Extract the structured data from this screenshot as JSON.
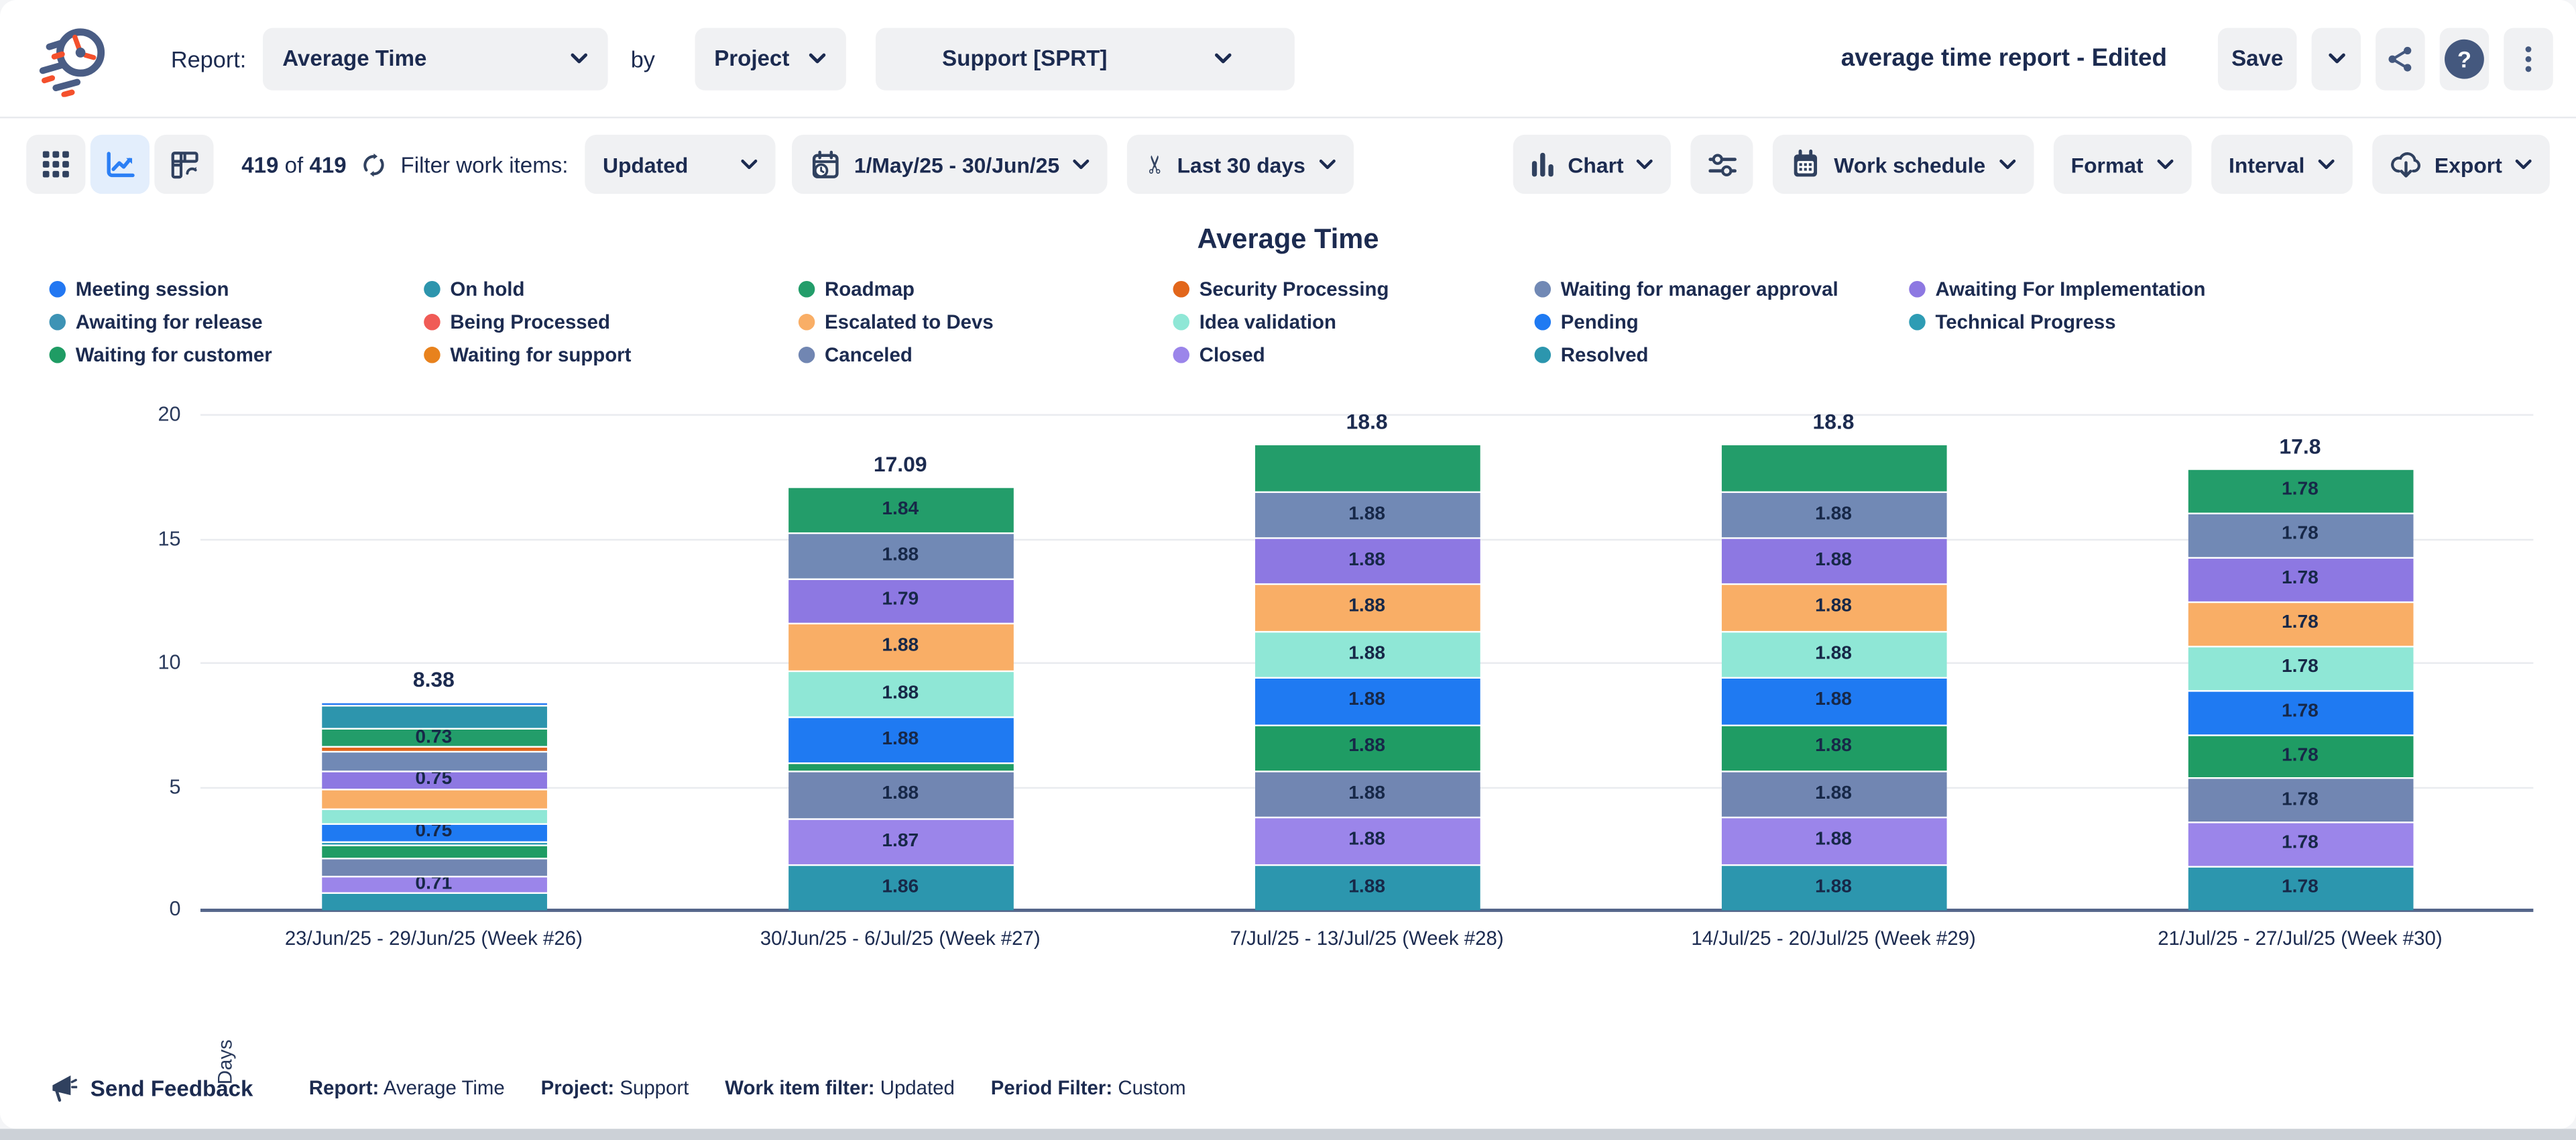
{
  "page": {
    "background": "#f4f5f7",
    "card_background": "#ffffff",
    "text_color": "#1c2b50",
    "accent_blue": "#2b7ff5",
    "button_background": "#f0f1f3",
    "selected_toggle_background": "#e3eefc"
  },
  "header": {
    "report_label": "Report:",
    "report_value": "Average Time",
    "by_label": "by",
    "group_by_value": "Project",
    "project_value": "Support [SPRT]",
    "document_title": "average time report - Edited",
    "save_label": "Save"
  },
  "toolbar": {
    "items_count": "419",
    "items_of": "of",
    "items_total": "419",
    "filter_label": "Filter work items:",
    "filter_value": "Updated",
    "date_range_value": "1/May/25 - 30/Jun/25",
    "trim_period_value": "Last 30 days",
    "chart_button_label": "Chart",
    "work_schedule_label": "Work schedule",
    "format_label": "Format",
    "interval_label": "Interval",
    "export_label": "Export"
  },
  "legend_columns": [
    [
      "Meeting session",
      "Awaiting for release",
      "Waiting for customer"
    ],
    [
      "On hold",
      "Being Processed",
      "Waiting for support"
    ],
    [
      "Roadmap",
      "Escalated to Devs",
      "Canceled"
    ],
    [
      "Security Processing",
      "Idea validation",
      "Closed"
    ],
    [
      "Waiting for manager approval",
      "Pending",
      "Resolved"
    ],
    [
      "Awaiting For Implementation",
      "Technical Progress"
    ]
  ],
  "status_colors": {
    "Meeting session": "#2277f2",
    "On hold": "#2d95ad",
    "Roadmap": "#239d6a",
    "Security Processing": "#e2661b",
    "Waiting for manager approval": "#7189b5",
    "Awaiting For Implementation": "#8d78e2",
    "Awaiting for release": "#3d93b5",
    "Being Processed": "#f05b56",
    "Escalated to Devs": "#f9ae66",
    "Idea validation": "#8fe7d6",
    "Pending": "#1f7af2",
    "Technical Progress": "#2e9cb4",
    "Waiting for customer": "#1f9c64",
    "Waiting for support": "#e8821d",
    "Canceled": "#7186b2",
    "Closed": "#9b85ea",
    "Resolved": "#2c96ae"
  },
  "chart_data": {
    "type": "stacked-bar",
    "title": "Average Time",
    "xlabel": "",
    "ylabel": "Days",
    "ylim": [
      0,
      20
    ],
    "yticks": [
      0,
      5,
      10,
      15,
      20
    ],
    "grid": true,
    "legend_position": "top",
    "categories": [
      "23/Jun/25 - 29/Jun/25 (Week #26)",
      "30/Jun/25 - 6/Jul/25 (Week #27)",
      "7/Jul/25 - 13/Jul/25 (Week #28)",
      "14/Jul/25 - 20/Jul/25 (Week #29)",
      "21/Jul/25 - 27/Jul/25 (Week #30)"
    ],
    "totals": [
      "8.38",
      "17.09",
      "18.8",
      "18.8",
      "17.8"
    ],
    "bars": [
      {
        "total": "8.38",
        "segments": [
          {
            "status": "Meeting session",
            "value": 0.15,
            "label": ""
          },
          {
            "status": "On hold",
            "value": 0.95,
            "label": ""
          },
          {
            "status": "Roadmap",
            "value": 0.73,
            "label": "0.73"
          },
          {
            "status": "Security Processing",
            "value": 0.18,
            "label": ""
          },
          {
            "status": "Waiting for manager approval",
            "value": 0.77,
            "label": ""
          },
          {
            "status": "Awaiting For Implementation",
            "value": 0.75,
            "label": "0.75"
          },
          {
            "status": "Escalated to Devs",
            "value": 0.77,
            "label": ""
          },
          {
            "status": "Idea validation",
            "value": 0.6,
            "label": ""
          },
          {
            "status": "Pending",
            "value": 0.75,
            "label": "0.75"
          },
          {
            "status": "Technical Progress",
            "value": 0.1,
            "label": ""
          },
          {
            "status": "Waiting for customer",
            "value": 0.54,
            "label": ""
          },
          {
            "status": "Canceled",
            "value": 0.68,
            "label": ""
          },
          {
            "status": "Closed",
            "value": 0.71,
            "label": "0.71"
          },
          {
            "status": "Resolved",
            "value": 0.7,
            "label": ""
          }
        ]
      },
      {
        "total": "17.09",
        "segments": [
          {
            "status": "Roadmap",
            "value": 1.84,
            "label": "1.84"
          },
          {
            "status": "Waiting for manager approval",
            "value": 1.88,
            "label": "1.88"
          },
          {
            "status": "Awaiting For Implementation",
            "value": 1.79,
            "label": "1.79"
          },
          {
            "status": "Escalated to Devs",
            "value": 1.88,
            "label": "1.88"
          },
          {
            "status": "Idea validation",
            "value": 1.88,
            "label": "1.88"
          },
          {
            "status": "Pending",
            "value": 1.88,
            "label": "1.88"
          },
          {
            "status": "Waiting for customer",
            "value": 0.33,
            "label": ""
          },
          {
            "status": "Canceled",
            "value": 1.88,
            "label": "1.88"
          },
          {
            "status": "Closed",
            "value": 1.87,
            "label": "1.87"
          },
          {
            "status": "Resolved",
            "value": 1.86,
            "label": "1.86"
          }
        ]
      },
      {
        "total": "18.8",
        "segments": [
          {
            "status": "Roadmap",
            "value": 1.88,
            "label": ""
          },
          {
            "status": "Waiting for manager approval",
            "value": 1.88,
            "label": "1.88"
          },
          {
            "status": "Awaiting For Implementation",
            "value": 1.88,
            "label": "1.88"
          },
          {
            "status": "Escalated to Devs",
            "value": 1.88,
            "label": "1.88"
          },
          {
            "status": "Idea validation",
            "value": 1.88,
            "label": "1.88"
          },
          {
            "status": "Pending",
            "value": 1.88,
            "label": "1.88"
          },
          {
            "status": "Waiting for customer",
            "value": 1.88,
            "label": "1.88"
          },
          {
            "status": "Canceled",
            "value": 1.88,
            "label": "1.88"
          },
          {
            "status": "Closed",
            "value": 1.88,
            "label": "1.88"
          },
          {
            "status": "Resolved",
            "value": 1.88,
            "label": "1.88"
          }
        ]
      },
      {
        "total": "18.8",
        "segments": [
          {
            "status": "Roadmap",
            "value": 1.88,
            "label": ""
          },
          {
            "status": "Waiting for manager approval",
            "value": 1.88,
            "label": "1.88"
          },
          {
            "status": "Awaiting For Implementation",
            "value": 1.88,
            "label": "1.88"
          },
          {
            "status": "Escalated to Devs",
            "value": 1.88,
            "label": "1.88"
          },
          {
            "status": "Idea validation",
            "value": 1.88,
            "label": "1.88"
          },
          {
            "status": "Pending",
            "value": 1.88,
            "label": "1.88"
          },
          {
            "status": "Waiting for customer",
            "value": 1.88,
            "label": "1.88"
          },
          {
            "status": "Canceled",
            "value": 1.88,
            "label": "1.88"
          },
          {
            "status": "Closed",
            "value": 1.88,
            "label": "1.88"
          },
          {
            "status": "Resolved",
            "value": 1.88,
            "label": "1.88"
          }
        ]
      },
      {
        "total": "17.8",
        "segments": [
          {
            "status": "Roadmap",
            "value": 1.78,
            "label": "1.78"
          },
          {
            "status": "Waiting for manager approval",
            "value": 1.78,
            "label": "1.78"
          },
          {
            "status": "Awaiting For Implementation",
            "value": 1.78,
            "label": "1.78"
          },
          {
            "status": "Escalated to Devs",
            "value": 1.78,
            "label": "1.78"
          },
          {
            "status": "Idea validation",
            "value": 1.78,
            "label": "1.78"
          },
          {
            "status": "Pending",
            "value": 1.78,
            "label": "1.78"
          },
          {
            "status": "Waiting for customer",
            "value": 1.78,
            "label": "1.78"
          },
          {
            "status": "Canceled",
            "value": 1.78,
            "label": "1.78"
          },
          {
            "status": "Closed",
            "value": 1.78,
            "label": "1.78"
          },
          {
            "status": "Resolved",
            "value": 1.78,
            "label": "1.78"
          }
        ]
      }
    ]
  },
  "footer": {
    "feedback_label": "Send Feedback",
    "meta": [
      {
        "label": "Report:",
        "value": "Average Time"
      },
      {
        "label": "Project:",
        "value": "Support"
      },
      {
        "label": "Work item filter:",
        "value": "Updated"
      },
      {
        "label": "Period Filter:",
        "value": "Custom"
      }
    ]
  }
}
